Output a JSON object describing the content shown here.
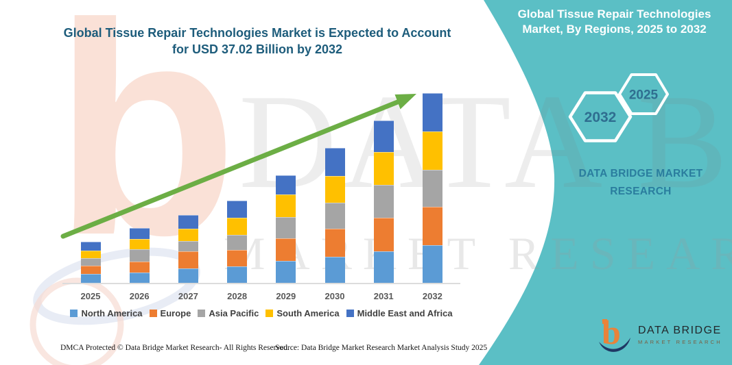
{
  "header": {
    "title_line1": "Global Tissue Repair Technologies Market is Expected to Account",
    "title_line2": "for USD 37.02 Billion by 2032"
  },
  "side_panel": {
    "background_color": "#5BBFC5",
    "title": "Global Tissue Repair Technologies Market, By Regions, 2025 to 2032",
    "hexagons": [
      {
        "label": "2032"
      },
      {
        "label": "2025"
      }
    ],
    "brand_line1": "DATA BRIDGE MARKET",
    "brand_line2": "RESEARCH"
  },
  "chart_data": {
    "type": "bar",
    "stacked": true,
    "title": "Global Tissue Repair Technologies Market, By Regions, 2025 to 2032",
    "unit": "USD Billion",
    "categories": [
      "2025",
      "2026",
      "2027",
      "2028",
      "2029",
      "2030",
      "2031",
      "2032"
    ],
    "series": [
      {
        "name": "North America",
        "color": "#5B9BD5",
        "values": [
          1.7,
          2.0,
          2.8,
          3.2,
          4.3,
          5.1,
          6.1,
          7.4
        ]
      },
      {
        "name": "Europe",
        "color": "#ED7D31",
        "values": [
          1.6,
          2.2,
          3.4,
          3.2,
          4.4,
          5.4,
          6.6,
          7.4
        ]
      },
      {
        "name": "Asia Pacific",
        "color": "#A5A5A5",
        "values": [
          1.5,
          2.3,
          1.9,
          3.0,
          4.1,
          5.2,
          6.4,
          7.3
        ]
      },
      {
        "name": "South America",
        "color": "#FFC000",
        "values": [
          1.5,
          2.0,
          2.5,
          3.3,
          4.4,
          5.2,
          6.4,
          7.5
        ]
      },
      {
        "name": "Middle East and Africa",
        "color": "#4472C4",
        "values": [
          1.72,
          2.2,
          2.6,
          3.3,
          3.8,
          5.4,
          6.2,
          7.42
        ]
      }
    ],
    "totals_estimated": [
      8.0,
      10.7,
      13.2,
      16.0,
      21.0,
      26.3,
      31.7,
      37.02
    ],
    "highlight_value": "USD 37.02 Billion by 2032",
    "trend_arrow_color": "#6CAE45",
    "legend_position": "bottom",
    "y_axis_hidden": true,
    "grid": false
  },
  "watermark": {
    "brand_letter": "b",
    "row1": "DATA BRIDGE",
    "row2": "MARKET RESEARCH"
  },
  "footer": {
    "dmca": "DMCA Protected © Data Bridge Market Research-  All Rights Reserved.",
    "source": "Source: Data Bridge Market Research  Market Analysis Study 2025"
  },
  "logo": {
    "name": "DATA BRIDGE",
    "subtitle": "MARKET RESEARCH"
  }
}
